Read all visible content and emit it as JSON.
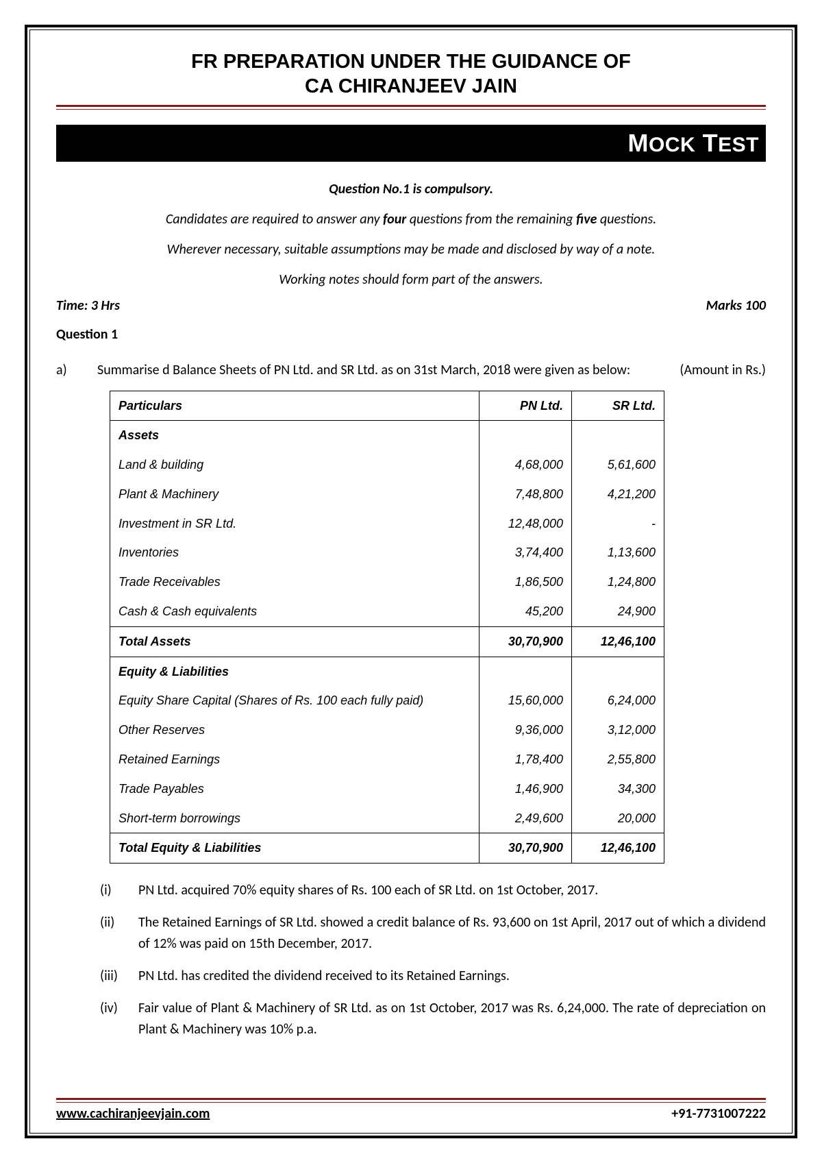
{
  "header": {
    "title_line1": "FR PREPARATION UNDER THE GUIDANCE OF",
    "title_line2": "CA CHIRANJEEV JAIN",
    "banner": "MOCK TEST"
  },
  "instructions": {
    "line1_pre": "Question No.1 is compulsory.",
    "line2_pre": "Candidates are required to answer any ",
    "line2_b1": "four",
    "line2_mid": " questions from the remaining ",
    "line2_b2": "five",
    "line2_post": " questions.",
    "line3": "Wherever necessary, suitable assumptions may be made and disclosed by way of a note.",
    "line4": "Working notes should form part of the answers."
  },
  "meta": {
    "time": "Time: 3 Hrs",
    "marks": "Marks 100"
  },
  "question": {
    "heading": "Question 1",
    "part_label": "a)",
    "intro": "Summarise d Balance Sheets of PN Ltd. and SR Ltd. as on 31st March, 2018 were given as below:",
    "amount_note": "(Amount in Rs.)"
  },
  "table": {
    "headers": {
      "col1": "Particulars",
      "col2": "PN Ltd.",
      "col3": "SR Ltd."
    },
    "assets_label": "Assets",
    "assets": [
      {
        "name": "Land & building",
        "pn": "4,68,000",
        "sr": "5,61,600"
      },
      {
        "name": "Plant & Machinery",
        "pn": "7,48,800",
        "sr": "4,21,200"
      },
      {
        "name": "Investment in SR Ltd.",
        "pn": "12,48,000",
        "sr": "-"
      },
      {
        "name": "Inventories",
        "pn": "3,74,400",
        "sr": "1,13,600"
      },
      {
        "name": "Trade Receivables",
        "pn": "1,86,500",
        "sr": "1,24,800"
      },
      {
        "name": "Cash & Cash equivalents",
        "pn": "45,200",
        "sr": "24,900"
      }
    ],
    "total_assets": {
      "name": "Total Assets",
      "pn": "30,70,900",
      "sr": "12,46,100"
    },
    "equity_label": "Equity & Liabilities",
    "equity": [
      {
        "name": "Equity Share Capital (Shares of Rs. 100 each fully paid)",
        "pn": "15,60,000",
        "sr": "6,24,000"
      },
      {
        "name": "Other Reserves",
        "pn": "9,36,000",
        "sr": "3,12,000"
      },
      {
        "name": "Retained Earnings",
        "pn": "1,78,400",
        "sr": "2,55,800"
      },
      {
        "name": "Trade Payables",
        "pn": "1,46,900",
        "sr": "34,300"
      },
      {
        "name": "Short-term borrowings",
        "pn": "2,49,600",
        "sr": "20,000"
      }
    ],
    "total_equity": {
      "name": "Total Equity & Liabilities",
      "pn": "30,70,900",
      "sr": "12,46,100"
    }
  },
  "notes": [
    {
      "label": "(i)",
      "text": "PN Ltd. acquired 70% equity shares of Rs. 100 each of SR Ltd. on 1st October, 2017."
    },
    {
      "label": "(ii)",
      "text": "The Retained Earnings of SR Ltd. showed a credit balance of Rs. 93,600 on 1st April, 2017 out of which a dividend of 12% was paid on 15th December, 2017."
    },
    {
      "label": "(iii)",
      "text": "PN Ltd. has credited the dividend received to its Retained Earnings."
    },
    {
      "label": "(iv)",
      "text": "Fair value of Plant & Machinery of SR Ltd. as on 1st October, 2017 was  Rs. 6,24,000. The rate of depreciation on Plant & Machinery was 10% p.a."
    }
  ],
  "footer": {
    "url": "www.cachiranjeevjain.com",
    "phone": "+91-7731007222"
  },
  "colors": {
    "accent": "#7a1f1f",
    "black": "#000000",
    "white": "#ffffff"
  }
}
